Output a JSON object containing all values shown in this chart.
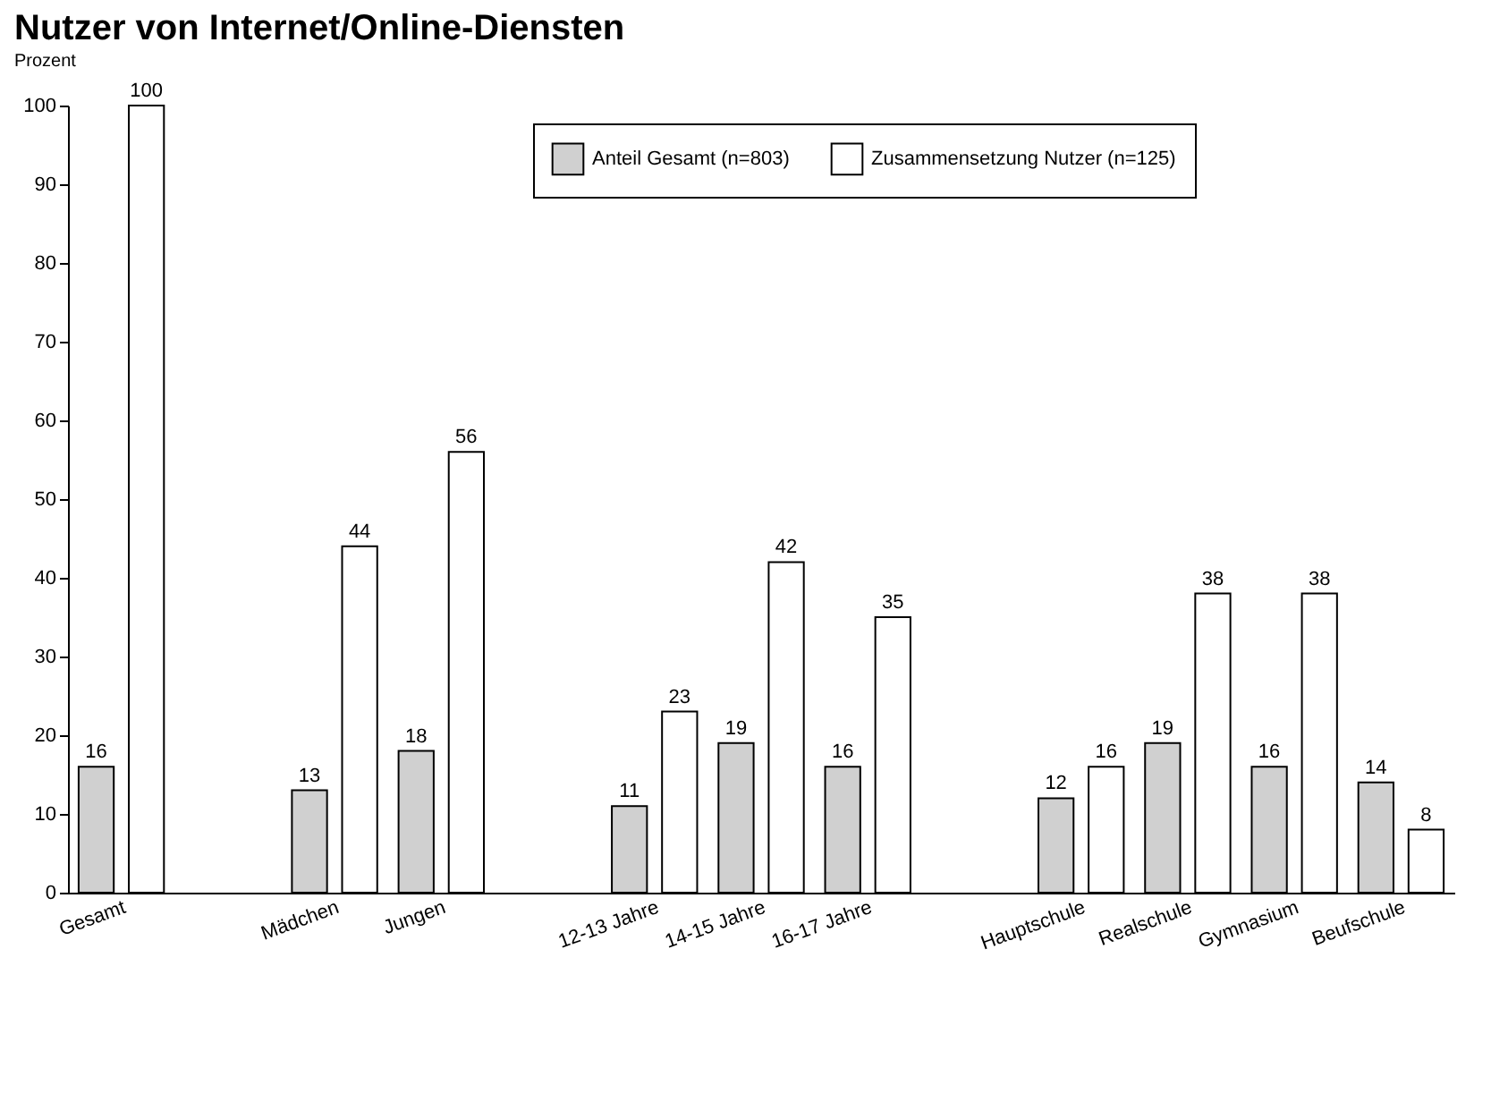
{
  "chart_data": {
    "type": "bar",
    "title": "Nutzer von Internet/Online-Diensten",
    "ylabel": "Prozent",
    "categories": [
      "Gesamt",
      null,
      "Mädchen",
      "Jungen",
      null,
      "12-13 Jahre",
      "14-15 Jahre",
      "16-17 Jahre",
      null,
      "Hauptschule",
      "Realschule",
      "Gymnasium",
      "Beufschule"
    ],
    "series": [
      {
        "name": "Anteil Gesamt (n=803)",
        "color": "#d0d0d0",
        "values": [
          16,
          null,
          13,
          18,
          null,
          11,
          19,
          16,
          null,
          12,
          19,
          16,
          14
        ]
      },
      {
        "name": "Zusammensetzung Nutzer (n=125)",
        "color": "#ffffff",
        "values": [
          100,
          null,
          44,
          56,
          null,
          23,
          42,
          35,
          null,
          16,
          38,
          38,
          8
        ]
      }
    ],
    "ylim": [
      0,
      100
    ],
    "yticks": [
      0,
      10,
      20,
      30,
      40,
      50,
      60,
      70,
      80,
      90,
      100
    ],
    "data_labels": true,
    "legend": "top"
  }
}
